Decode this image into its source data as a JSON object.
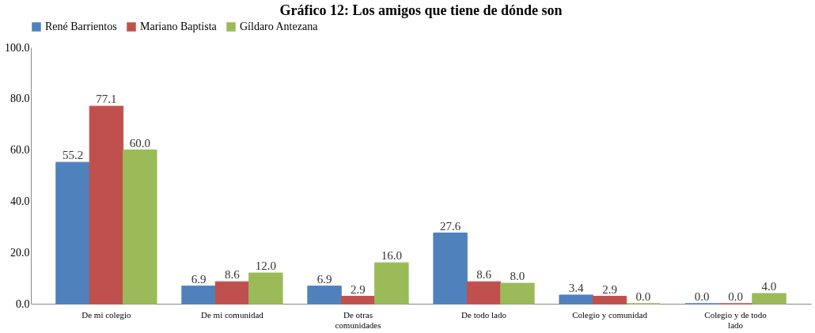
{
  "chart_data": {
    "type": "bar",
    "title": "Gráfico 12: Los amigos que tiene de dónde son",
    "categories": [
      "De mi colegio",
      "De mi comunidad",
      "De otras\ncomunidades",
      "De todo lado",
      "Colegio y comunidad",
      "Colegio y de todo\nlado"
    ],
    "series": [
      {
        "name": "René Barrientos",
        "color": "#4f81bd",
        "values": [
          55.2,
          6.9,
          6.9,
          27.6,
          3.4,
          0.0
        ],
        "value_labels": [
          "55.2",
          "6.9",
          "6.9",
          "27.6",
          "3.4",
          "0.0"
        ]
      },
      {
        "name": "Mariano Baptista",
        "color": "#c0504d",
        "values": [
          77.1,
          8.6,
          2.9,
          8.6,
          2.9,
          0.0
        ],
        "value_labels": [
          "77.1",
          "8.6",
          "2.9",
          "8.6",
          "2.9",
          "0.0"
        ]
      },
      {
        "name": "Gíldaro Antezana",
        "color": "#9bbb59",
        "values": [
          60.0,
          12.0,
          16.0,
          8.0,
          0.0,
          4.0
        ],
        "value_labels": [
          "60.0",
          "12.0",
          "16.0",
          "8.0",
          "0.0",
          "4.0"
        ]
      }
    ],
    "ylim": [
      0,
      100
    ],
    "yticks": [
      {
        "value": 0,
        "label": "0.0"
      },
      {
        "value": 20,
        "label": "20.0"
      },
      {
        "value": 40,
        "label": "40.0"
      },
      {
        "value": 60,
        "label": "60.0"
      },
      {
        "value": 80,
        "label": "80.0"
      },
      {
        "value": 100,
        "label": "100.0"
      }
    ],
    "grid": false,
    "legend": "top"
  }
}
